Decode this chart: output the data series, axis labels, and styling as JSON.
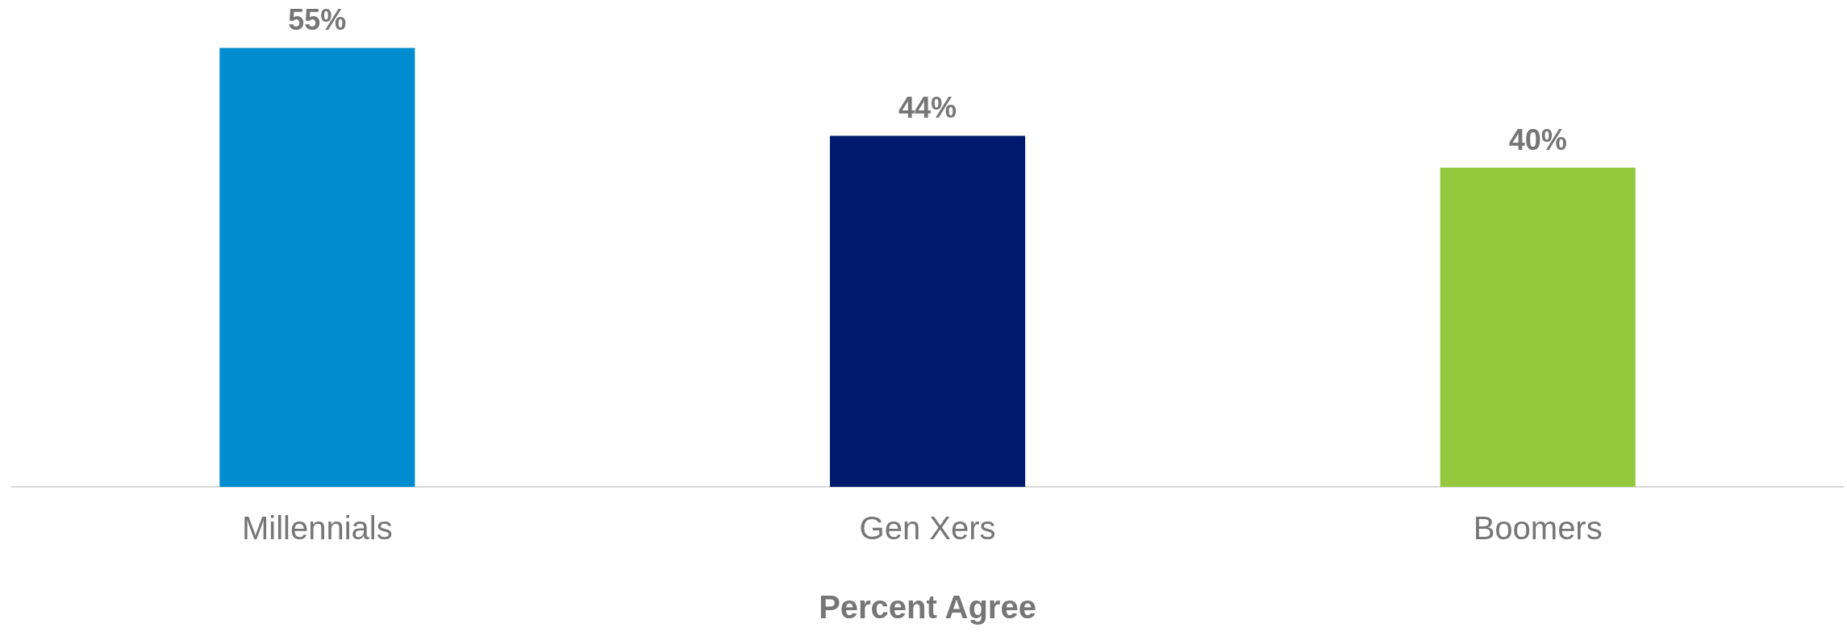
{
  "chart_data": {
    "type": "bar",
    "xlabel": "Percent Agree",
    "categories": [
      "Millennials",
      "Gen Xers",
      "Boomers"
    ],
    "values": [
      55,
      44,
      40
    ],
    "colors": [
      "#008ccf",
      "#001b6e",
      "#95c93d"
    ],
    "data_labels": true,
    "value_labels": [
      "55%",
      "44%",
      "40%"
    ],
    "grid": false,
    "legend": false
  }
}
